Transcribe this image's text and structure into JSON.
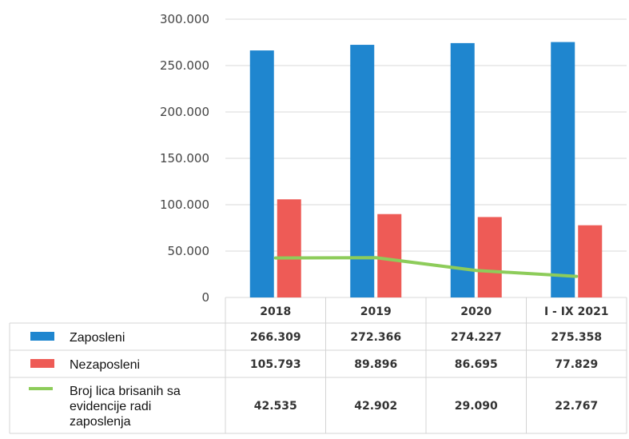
{
  "chart_data": {
    "type": "bar",
    "categories": [
      "2018",
      "2019",
      "2020",
      "I - IX 2021"
    ],
    "series": [
      {
        "name": "Zaposleni",
        "kind": "bar",
        "color": "#1f86cf",
        "values": [
          266309,
          272366,
          274227,
          275358
        ],
        "labels": [
          "266.309",
          "272.366",
          "274.227",
          "275.358"
        ]
      },
      {
        "name": "Nezaposleni",
        "kind": "bar",
        "color": "#ee5b56",
        "values": [
          105793,
          89896,
          86695,
          77829
        ],
        "labels": [
          "105.793",
          "89.896",
          "86.695",
          "77.829"
        ]
      },
      {
        "name": "Broj lica brisanih sa evidencije radi zaposlenja",
        "name_lines": [
          "Broj lica brisanih sa",
          "evidencije radi",
          "zaposlenja"
        ],
        "kind": "line",
        "color": "#8dcc5a",
        "values": [
          42535,
          42902,
          29090,
          22767
        ],
        "labels": [
          "42.535",
          "42.902",
          "29.090",
          "22.767"
        ]
      }
    ],
    "ylim": [
      0,
      300000
    ],
    "yticks": [
      0,
      50000,
      100000,
      150000,
      200000,
      250000,
      300000
    ],
    "ytick_labels": [
      "0",
      "50.000",
      "100.000",
      "150.000",
      "200.000",
      "250.000",
      "300.000"
    ],
    "grid": true,
    "legend": "data-table-below"
  }
}
